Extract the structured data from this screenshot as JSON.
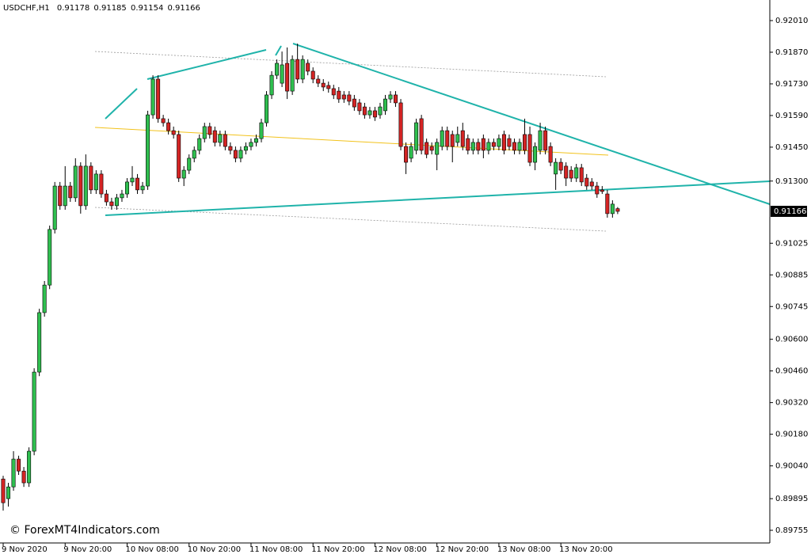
{
  "chart_data": {
    "type": "candlestick",
    "title": "USDCHF,H1",
    "watermark": "© ForexMT4Indicators.com",
    "categories": [
      "9 Nov 2020",
      null,
      null,
      null,
      null,
      null,
      null,
      null,
      null,
      null,
      null,
      null,
      "9 Nov 20:00",
      null,
      null,
      null,
      null,
      null,
      null,
      null,
      null,
      null,
      null,
      null,
      "10 Nov 08:00",
      null,
      null,
      null,
      null,
      null,
      null,
      null,
      null,
      null,
      null,
      null,
      "10 Nov 20:00",
      null,
      null,
      null,
      null,
      null,
      null,
      null,
      null,
      null,
      null,
      null,
      "11 Nov 08:00",
      null,
      null,
      null,
      null,
      null,
      null,
      null,
      null,
      null,
      null,
      null,
      "11 Nov 20:00",
      null,
      null,
      null,
      null,
      null,
      null,
      null,
      null,
      null,
      null,
      null,
      "12 Nov 08:00",
      null,
      null,
      null,
      null,
      null,
      null,
      null,
      null,
      null,
      null,
      null,
      "12 Nov 20:00",
      null,
      null,
      null,
      null,
      null,
      null,
      null,
      null,
      null,
      null,
      null,
      "13 Nov 08:00",
      null,
      null,
      null,
      null,
      null,
      null,
      null,
      null,
      null,
      null,
      null,
      "13 Nov 20:00",
      null,
      null,
      null,
      null,
      null,
      null,
      null,
      null,
      null,
      null,
      null
    ],
    "series": [
      {
        "up_color": "#2fbf4f",
        "down_color": "#d42424",
        "open": [
          0.89982,
          0.89895,
          0.89947,
          0.9007,
          0.90017,
          0.89965,
          0.90105,
          0.90455,
          0.90718,
          0.9084,
          0.91086,
          0.91278,
          0.91191,
          0.91278,
          0.91226,
          0.91366,
          0.91191,
          0.91366,
          0.91261,
          0.91331,
          0.91243,
          0.91208,
          0.91191,
          0.91226,
          0.91243,
          0.91296,
          0.91313,
          0.91261,
          0.91278,
          0.91593,
          0.91751,
          0.91576,
          0.91558,
          0.91523,
          0.91506,
          0.91313,
          0.91348,
          0.91401,
          0.91436,
          0.91488,
          0.91541,
          0.91523,
          0.91471,
          0.91506,
          0.91453,
          0.91436,
          0.91401,
          0.91436,
          0.91453,
          0.91471,
          0.91488,
          0.91558,
          0.91681,
          0.91768,
          0.91733,
          0.91821,
          0.91698,
          0.91838,
          0.91751,
          0.91821,
          0.91786,
          0.91751,
          0.91733,
          0.91723,
          0.91709,
          0.91698,
          0.91681,
          0.91681,
          0.91663,
          0.91646,
          0.91628,
          0.91593,
          0.91611,
          0.91593,
          0.91611,
          0.91663,
          0.91681,
          0.91646,
          0.91453,
          0.91401,
          0.91436,
          0.91576,
          0.91471,
          0.91453,
          0.91418,
          0.91453,
          0.91523,
          0.91506,
          0.91471,
          0.91523,
          0.91488,
          0.91436,
          0.91471,
          0.91488,
          0.91436,
          0.91471,
          0.91453,
          0.91506,
          0.91488,
          0.91471,
          0.91436,
          0.91506,
          0.91506,
          0.91383,
          0.91436,
          0.91523,
          0.91453,
          0.91331,
          0.91383,
          0.91366,
          0.91348,
          0.91313,
          0.91359,
          0.91313,
          0.91296,
          0.91278,
          0.91261,
          0.91243,
          0.91156,
          0.91178
        ],
        "high": [
          0.89996,
          0.89965,
          0.90105,
          0.90085,
          0.90035,
          0.90122,
          0.90472,
          0.90735,
          0.90858,
          0.91103,
          0.91296,
          0.91296,
          0.91366,
          0.91296,
          0.91401,
          0.91383,
          0.91418,
          0.91383,
          0.91348,
          0.91348,
          0.91261,
          0.91226,
          0.91243,
          0.91261,
          0.91313,
          0.91366,
          0.91331,
          0.91296,
          0.91611,
          0.91768,
          0.91768,
          0.91593,
          0.91576,
          0.91541,
          0.91523,
          0.91366,
          0.91418,
          0.91453,
          0.91506,
          0.91558,
          0.91558,
          0.91541,
          0.91523,
          0.91523,
          0.91471,
          0.91453,
          0.91453,
          0.91471,
          0.91488,
          0.91506,
          0.91576,
          0.91698,
          0.91786,
          0.91838,
          0.91873,
          0.91891,
          0.91856,
          0.91908,
          0.91856,
          0.91838,
          0.91803,
          0.91768,
          0.91751,
          0.9174,
          0.91726,
          0.91716,
          0.91698,
          0.91698,
          0.91681,
          0.91663,
          0.91646,
          0.91628,
          0.91628,
          0.91646,
          0.91681,
          0.91698,
          0.91698,
          0.91663,
          0.91471,
          0.91471,
          0.91576,
          0.91593,
          0.91488,
          0.91471,
          0.91488,
          0.91541,
          0.91541,
          0.91523,
          0.91541,
          0.91558,
          0.91506,
          0.91488,
          0.91488,
          0.91506,
          0.91488,
          0.91488,
          0.91506,
          0.91523,
          0.91506,
          0.91488,
          0.91488,
          0.91576,
          0.91541,
          0.91471,
          0.91558,
          0.91541,
          0.91471,
          0.91401,
          0.91401,
          0.91383,
          0.91366,
          0.91376,
          0.91376,
          0.91331,
          0.91313,
          0.91296,
          0.91278,
          0.91261,
          0.91215,
          0.91185
        ],
        "low": [
          0.89842,
          0.8986,
          0.8993,
          0.9,
          0.89947,
          0.89947,
          0.90087,
          0.90437,
          0.907,
          0.90822,
          0.91068,
          0.91173,
          0.91173,
          0.91208,
          0.91208,
          0.91156,
          0.91173,
          0.91243,
          0.91243,
          0.91226,
          0.91191,
          0.91173,
          0.91173,
          0.91208,
          0.91226,
          0.91278,
          0.91243,
          0.91243,
          0.91261,
          0.91576,
          0.91558,
          0.91541,
          0.91506,
          0.91488,
          0.91296,
          0.91278,
          0.91331,
          0.91383,
          0.91418,
          0.91471,
          0.91488,
          0.91453,
          0.91453,
          0.91436,
          0.91418,
          0.91383,
          0.91383,
          0.91418,
          0.91436,
          0.91453,
          0.91471,
          0.91541,
          0.91663,
          0.91751,
          0.91716,
          0.91663,
          0.91681,
          0.91733,
          0.91733,
          0.91768,
          0.91733,
          0.91716,
          0.91698,
          0.91691,
          0.91663,
          0.91646,
          0.91646,
          0.91635,
          0.91611,
          0.91593,
          0.91576,
          0.91576,
          0.91566,
          0.91576,
          0.91593,
          0.91646,
          0.91628,
          0.91436,
          0.91331,
          0.91383,
          0.91418,
          0.91418,
          0.91401,
          0.91418,
          0.91348,
          0.91436,
          0.91436,
          0.91383,
          0.91453,
          0.91436,
          0.91418,
          0.91418,
          0.91418,
          0.91401,
          0.91418,
          0.91436,
          0.91436,
          0.91418,
          0.91436,
          0.91418,
          0.91418,
          0.91418,
          0.91366,
          0.91348,
          0.91418,
          0.91418,
          0.91366,
          0.91261,
          0.91331,
          0.91278,
          0.91296,
          0.91296,
          0.91278,
          0.91261,
          0.91261,
          0.91226,
          0.91243,
          0.91138,
          0.91138,
          0.91154
        ],
        "close": [
          0.89877,
          0.89947,
          0.9007,
          0.90017,
          0.89965,
          0.90105,
          0.90455,
          0.90718,
          0.9084,
          0.91086,
          0.91278,
          0.91191,
          0.91278,
          0.91226,
          0.91366,
          0.91191,
          0.91366,
          0.91261,
          0.91331,
          0.91243,
          0.91208,
          0.91191,
          0.91226,
          0.91243,
          0.91296,
          0.91313,
          0.91261,
          0.91278,
          0.91593,
          0.91751,
          0.91576,
          0.91558,
          0.91523,
          0.91506,
          0.91313,
          0.91348,
          0.91401,
          0.91436,
          0.91488,
          0.91541,
          0.91506,
          0.91471,
          0.91506,
          0.91453,
          0.91436,
          0.91401,
          0.91436,
          0.91453,
          0.91471,
          0.91488,
          0.91558,
          0.91681,
          0.91768,
          0.91821,
          0.91814,
          0.91698,
          0.91838,
          0.91751,
          0.91838,
          0.91786,
          0.91751,
          0.91733,
          0.91716,
          0.91709,
          0.91681,
          0.91663,
          0.91663,
          0.91653,
          0.91628,
          0.91611,
          0.91593,
          0.91611,
          0.91583,
          0.91628,
          0.91663,
          0.91681,
          0.91646,
          0.91453,
          0.91383,
          0.91453,
          0.91558,
          0.91436,
          0.91418,
          0.91436,
          0.91471,
          0.91523,
          0.91453,
          0.91453,
          0.91506,
          0.91453,
          0.91436,
          0.91471,
          0.91436,
          0.91436,
          0.91471,
          0.91453,
          0.91488,
          0.91436,
          0.91453,
          0.91436,
          0.91471,
          0.91436,
          0.91383,
          0.91453,
          0.91523,
          0.91436,
          0.91383,
          0.91383,
          0.91348,
          0.91313,
          0.91313,
          0.91359,
          0.91296,
          0.91278,
          0.91278,
          0.91243,
          0.91254,
          0.91156,
          0.91198,
          0.91166
        ]
      }
    ],
    "ylim": [
      0.89699,
      0.92101
    ],
    "yticks": [
      {
        "value": 0.9201,
        "label": "0.92010"
      },
      {
        "value": 0.9187,
        "label": "0.91870"
      },
      {
        "value": 0.9173,
        "label": "0.91730"
      },
      {
        "value": 0.9159,
        "label": "0.91590"
      },
      {
        "value": 0.9145,
        "label": "0.91450"
      },
      {
        "value": 0.913,
        "label": "0.91300"
      },
      {
        "value": 0.91025,
        "label": "0.91025"
      },
      {
        "value": 0.90885,
        "label": "0.90885"
      },
      {
        "value": 0.90745,
        "label": "0.90745"
      },
      {
        "value": 0.906,
        "label": "0.90600"
      },
      {
        "value": 0.9046,
        "label": "0.90460"
      },
      {
        "value": 0.9032,
        "label": "0.90320"
      },
      {
        "value": 0.9018,
        "label": "0.90180"
      },
      {
        "value": 0.9004,
        "label": "0.90040"
      },
      {
        "value": 0.89895,
        "label": "0.89895"
      },
      {
        "value": 0.89755,
        "label": "0.89755"
      }
    ],
    "grid": false
  }
}
